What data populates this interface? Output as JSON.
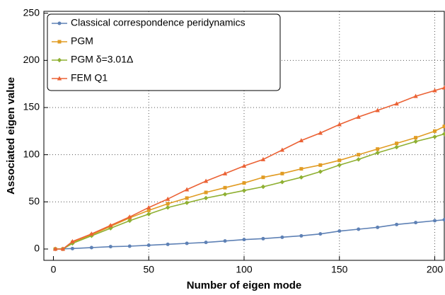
{
  "chart_data": {
    "type": "line",
    "xlabel": "Number of eigen mode",
    "ylabel": "Associated eigen value",
    "x": [
      1,
      5,
      10,
      20,
      30,
      40,
      50,
      60,
      70,
      80,
      90,
      100,
      110,
      120,
      130,
      140,
      150,
      160,
      170,
      180,
      190,
      200,
      205
    ],
    "series": [
      {
        "name": "Classical correspondence peridynamics",
        "color": "#5e81b5",
        "marker": "circle",
        "values": [
          0,
          0.2,
          0.5,
          1.5,
          2.5,
          3,
          4,
          5,
          6,
          7,
          8.5,
          10,
          11,
          12.5,
          14,
          16,
          19,
          21,
          23,
          26,
          28,
          30,
          31
        ]
      },
      {
        "name": "PGM",
        "color": "#e19c24",
        "marker": "square",
        "values": [
          0,
          0,
          7,
          15,
          24,
          33,
          41,
          48,
          54,
          60,
          65,
          70,
          76,
          80,
          85,
          89,
          94,
          100,
          106,
          112,
          118,
          125,
          130
        ]
      },
      {
        "name": "PGM δ=3.01Δ",
        "color": "#8fb032",
        "marker": "diamond",
        "values": [
          0,
          0,
          6,
          14,
          22,
          30,
          37,
          44,
          49,
          54,
          58,
          62,
          66,
          71,
          76,
          82,
          89,
          95,
          102,
          108,
          114,
          119,
          122
        ]
      },
      {
        "name": "FEM Q1",
        "color": "#eb6235",
        "marker": "triangle",
        "values": [
          0,
          0,
          8,
          16,
          25,
          34,
          44,
          53,
          63,
          72,
          80,
          88,
          95,
          105,
          115,
          123,
          132,
          140,
          147,
          154,
          162,
          168,
          171
        ]
      }
    ],
    "xlim": [
      -5,
      205
    ],
    "ylim": [
      -12,
      252
    ],
    "xticks": [
      0,
      50,
      100,
      150,
      200
    ],
    "yticks": [
      0,
      50,
      100,
      150,
      200,
      250
    ],
    "grid": true,
    "legend": "upper left"
  }
}
